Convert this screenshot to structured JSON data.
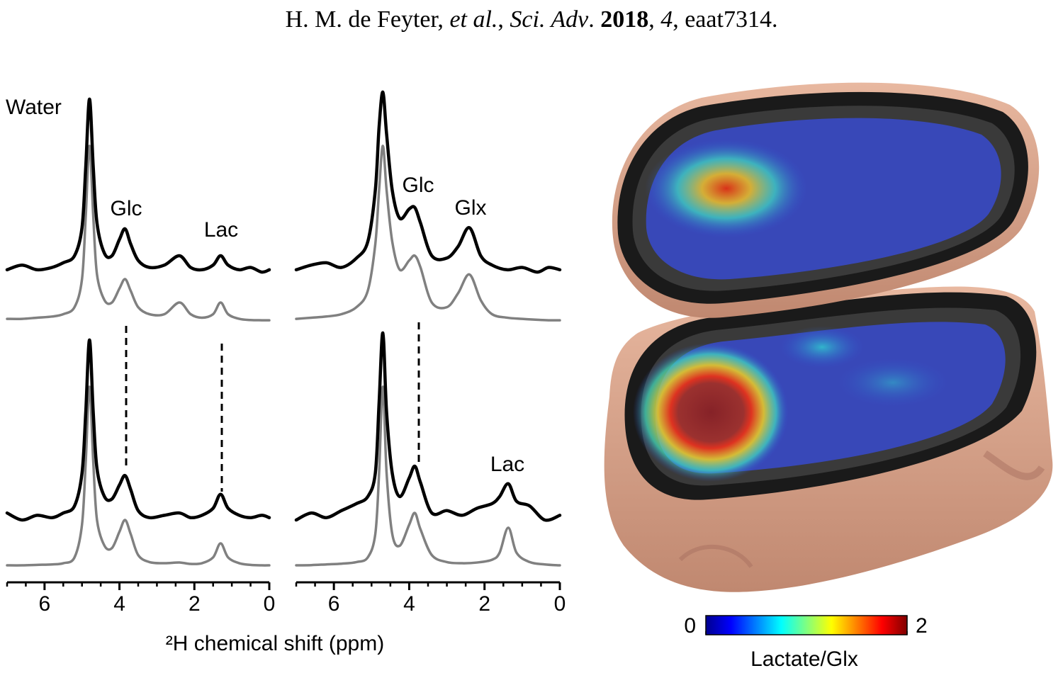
{
  "figure": {
    "citation": [
      {
        "text": "H. M. de Feyter, ",
        "style": "normal"
      },
      {
        "text": "et al.",
        "style": "italic"
      },
      {
        "text": ", ",
        "style": "normal"
      },
      {
        "text": "Sci. Adv",
        "style": "italic"
      },
      {
        "text": ". ",
        "style": "normal"
      },
      {
        "text": "2018",
        "style": "bold"
      },
      {
        "text": ", ",
        "style": "normal"
      },
      {
        "text": "4",
        "style": "italic"
      },
      {
        "text": ", eaat7314.",
        "style": "normal"
      }
    ],
    "xlabel": "²H chemical shift (ppm)"
  },
  "chart_data": [
    {
      "type": "line",
      "xlim": [
        7,
        0
      ],
      "ylim": [
        0,
        100
      ],
      "annotations": [
        "Water",
        "Glc",
        "Lac"
      ],
      "x": [
        7,
        6.6,
        6.2,
        5.8,
        5.5,
        5.2,
        5.0,
        4.9,
        4.8,
        4.7,
        4.6,
        4.4,
        4.2,
        4.0,
        3.85,
        3.7,
        3.5,
        3.2,
        2.8,
        2.4,
        2.1,
        1.8,
        1.5,
        1.3,
        1.1,
        0.8,
        0.5,
        0.2,
        0
      ],
      "series": [
        {
          "color": "#808080",
          "values": [
            3,
            3,
            3.5,
            4,
            5,
            8,
            20,
            47,
            77,
            47,
            22,
            11,
            10,
            16,
            20,
            15,
            8,
            5,
            5,
            10,
            5,
            3.5,
            5,
            10,
            5,
            3,
            2.5,
            2.4,
            2.4
          ]
        },
        {
          "color": "#000000",
          "values": [
            24,
            26,
            24,
            25,
            27,
            30,
            42,
            68,
            97,
            68,
            44,
            31,
            30,
            37,
            41.5,
            35,
            28,
            25,
            26,
            30,
            25,
            24,
            26,
            30,
            26,
            24,
            25,
            23,
            24
          ]
        }
      ]
    },
    {
      "type": "line",
      "xlim": [
        7,
        0
      ],
      "ylim": [
        0,
        100
      ],
      "annotations": [
        "Glc",
        "Glx"
      ],
      "x": [
        7,
        6.6,
        6.2,
        5.8,
        5.4,
        5.1,
        4.9,
        4.8,
        4.7,
        4.6,
        4.45,
        4.25,
        4.0,
        3.85,
        3.7,
        3.4,
        3.0,
        2.7,
        2.4,
        2.1,
        1.8,
        1.4,
        1.0,
        0.6,
        0.3,
        0
      ],
      "series": [
        {
          "color": "#808080",
          "values": [
            3,
            3.5,
            4,
            5,
            8,
            15,
            35,
            58,
            77,
            58,
            36,
            24,
            28,
            30,
            25,
            10,
            8,
            14,
            22,
            11,
            5,
            3.5,
            3,
            2.6,
            2.4,
            2.4
          ]
        },
        {
          "color": "#000000",
          "values": [
            24,
            26,
            27,
            25,
            29,
            36,
            58,
            85,
            100,
            82,
            58,
            46,
            50,
            50.6,
            44,
            30,
            29,
            34,
            42,
            30,
            26,
            24,
            25,
            23,
            25,
            24
          ]
        }
      ]
    },
    {
      "type": "line",
      "xlim": [
        7,
        0
      ],
      "ylim": [
        0,
        100
      ],
      "xticks": [
        6,
        4,
        2,
        0
      ],
      "xminorticks": [
        7,
        6.5,
        5.5,
        5,
        4.5,
        3.5,
        3,
        2.5,
        1.5,
        1,
        0.5
      ],
      "annotations": [],
      "x": [
        7,
        6.6,
        6.2,
        5.8,
        5.5,
        5.2,
        5.0,
        4.9,
        4.8,
        4.7,
        4.6,
        4.4,
        4.2,
        4.0,
        3.85,
        3.7,
        3.5,
        3.2,
        2.8,
        2.4,
        2.1,
        1.8,
        1.5,
        1.3,
        1.1,
        0.8,
        0.5,
        0.2,
        0
      ],
      "series": [
        {
          "color": "#808080",
          "values": [
            0.6,
            0.6,
            0.8,
            1,
            1.5,
            4,
            18,
            45,
            77,
            45,
            20,
            9,
            8,
            15,
            20,
            14,
            5,
            2,
            1.5,
            1.8,
            1.2,
            1.5,
            4,
            10,
            4,
            1.5,
            0.8,
            0.6,
            0.6
          ]
        },
        {
          "color": "#000000",
          "values": [
            23,
            20,
            22,
            21,
            23,
            26,
            40,
            66,
            97,
            66,
            42,
            30,
            29,
            35,
            39,
            33,
            24,
            21,
            22,
            23,
            21,
            22,
            25,
            31,
            25,
            22,
            21,
            22,
            21
          ]
        }
      ]
    },
    {
      "type": "line",
      "xlim": [
        7,
        0
      ],
      "ylim": [
        0,
        100
      ],
      "xticks": [
        6,
        4,
        2,
        0
      ],
      "xminorticks": [
        7,
        6.5,
        5.5,
        5,
        4.5,
        3.5,
        3,
        2.5,
        1.5,
        1,
        0.5
      ],
      "annotations": [
        "Lac"
      ],
      "x": [
        7,
        6.6,
        6.2,
        5.8,
        5.4,
        5.1,
        4.9,
        4.8,
        4.7,
        4.6,
        4.45,
        4.25,
        4.0,
        3.85,
        3.7,
        3.4,
        3.0,
        2.6,
        2.2,
        1.8,
        1.6,
        1.37,
        1.15,
        0.8,
        0.4,
        0
      ],
      "series": [
        {
          "color": "#808080",
          "values": [
            0.6,
            0.7,
            1,
            1.3,
            2,
            4,
            14,
            40,
            77,
            40,
            14,
            9,
            18,
            23,
            16,
            5,
            2,
            1.5,
            1.8,
            3,
            6,
            16.7,
            6,
            2,
            1,
            0.6
          ]
        },
        {
          "color": "#000000",
          "values": [
            20,
            23,
            21,
            24,
            27,
            30,
            40,
            70,
            100,
            66,
            40,
            30,
            38,
            43,
            36,
            23,
            24,
            22,
            25,
            27,
            30,
            35.5,
            28,
            26,
            20,
            22
          ]
        }
      ]
    },
    {
      "type": "colorbar",
      "clim": [
        0,
        2
      ],
      "ticks": [
        0,
        2
      ],
      "label": "Lactate/Glx",
      "colors": [
        "#00008f",
        "#0000ff",
        "#0080ff",
        "#00ffff",
        "#80ff80",
        "#ffff00",
        "#ff8000",
        "#ff0000",
        "#800000"
      ]
    }
  ]
}
